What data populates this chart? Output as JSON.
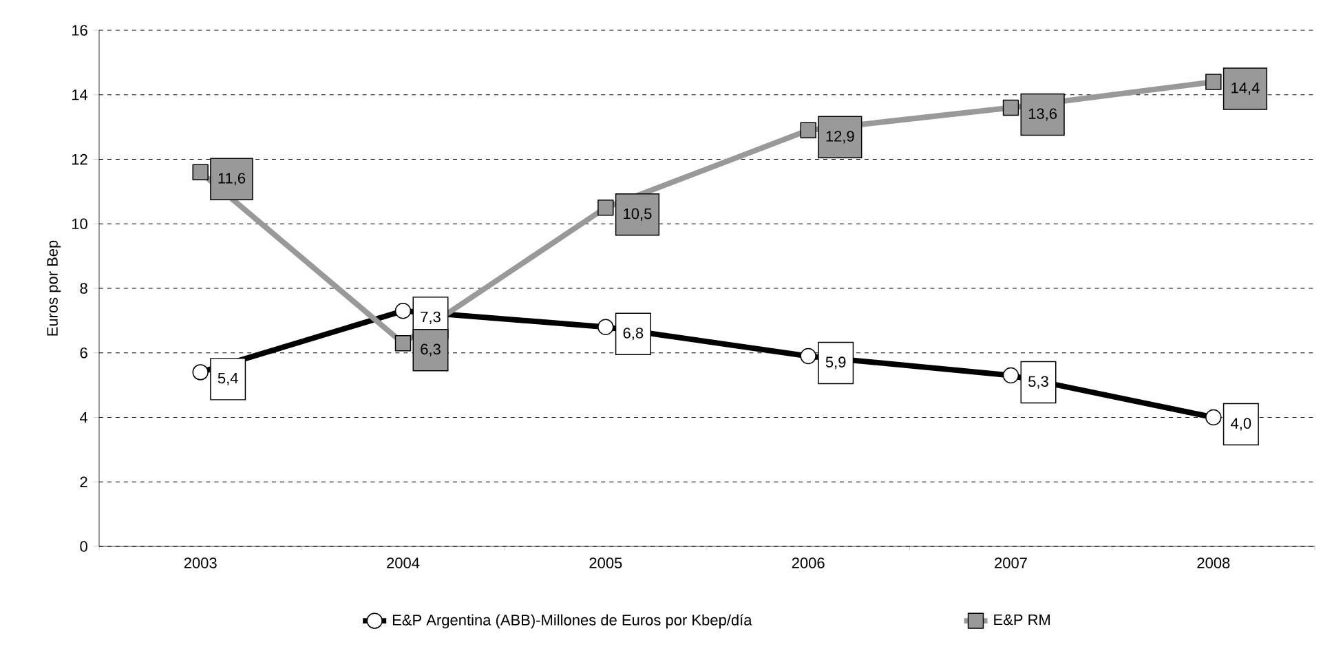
{
  "chart_data": {
    "type": "line",
    "ylabel": "Euros por Bep",
    "categories": [
      "2003",
      "2004",
      "2005",
      "2006",
      "2007",
      "2008"
    ],
    "ylim": [
      0,
      16
    ],
    "yticks": [
      0,
      2,
      4,
      6,
      8,
      10,
      12,
      14,
      16
    ],
    "grid": "y",
    "legend": "bottom",
    "series": [
      {
        "name": "E&P Argentina (ABB)-Millones de Euros por Kbep/día",
        "color": "#000000",
        "marker": "circle",
        "values": [
          5.4,
          7.3,
          6.8,
          5.9,
          5.3,
          4.0
        ],
        "value_labels": [
          "5,4",
          "7,3",
          "6,8",
          "5,9",
          "5,3",
          "4,0"
        ]
      },
      {
        "name": "E&P RM",
        "color": "#999999",
        "marker": "square",
        "values": [
          11.6,
          6.3,
          10.5,
          12.9,
          13.6,
          14.4
        ],
        "value_labels": [
          "11,6",
          "6,3",
          "10,5",
          "12,9",
          "13,6",
          "14,4"
        ]
      }
    ]
  }
}
